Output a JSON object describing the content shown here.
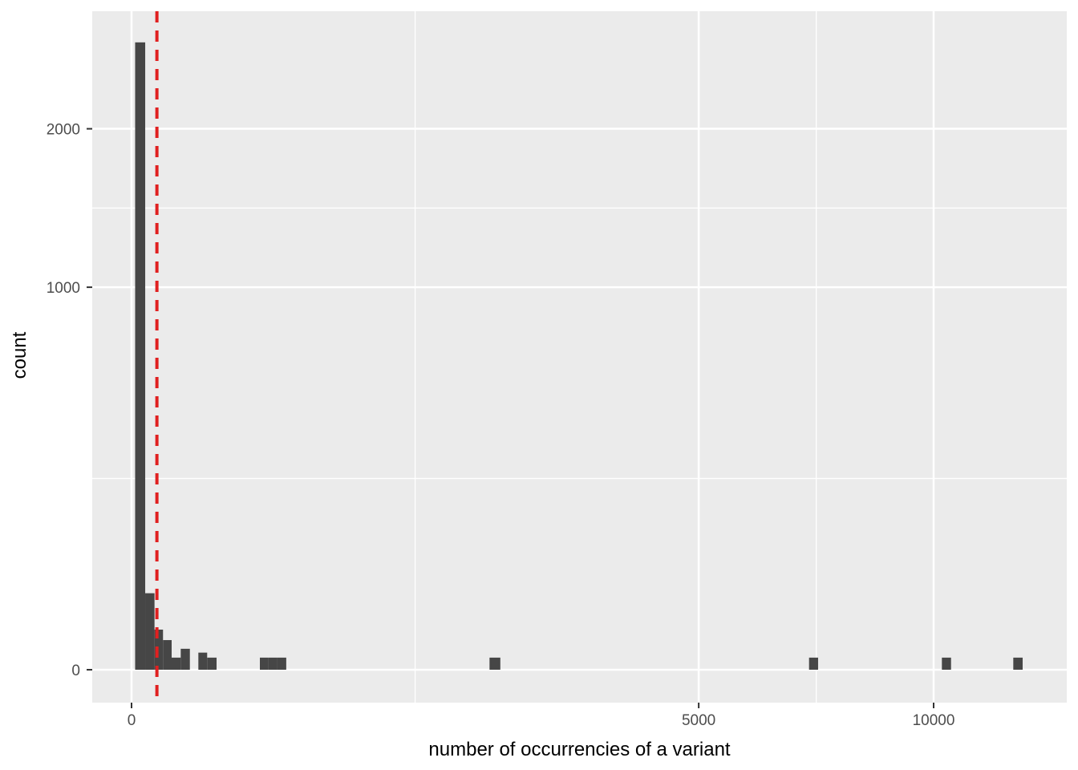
{
  "chart_data": {
    "type": "bar",
    "subtype": "histogram",
    "title": "",
    "xlabel": "number of occurrencies of a variant",
    "ylabel": "count",
    "x_scale": "sqrt",
    "y_scale": "sqrt",
    "grid": "on",
    "legend": "none",
    "x_ticks": [
      {
        "value": 0,
        "label": "0"
      },
      {
        "value": 5000,
        "label": "5000"
      },
      {
        "value": 10000,
        "label": "10000"
      }
    ],
    "x_minor_breaks": [
      1250,
      7288
    ],
    "y_ticks": [
      {
        "value": 0,
        "label": "0"
      },
      {
        "value": 1000,
        "label": "1000"
      },
      {
        "value": 2000,
        "label": "2000"
      }
    ],
    "y_minor_breaks": [
      250,
      1457
    ],
    "x_range_sqrt": [
      -4.9,
      116.6
    ],
    "y_range_sqrt": [
      -2.72,
      54.44
    ],
    "bins": [
      {
        "from": 0.2,
        "to": 2.9,
        "count": 2690
      },
      {
        "from": 2.9,
        "to": 8.2,
        "count": 40
      },
      {
        "from": 8.2,
        "to": 15.4,
        "count": 11
      },
      {
        "from": 15.4,
        "to": 25,
        "count": 6
      },
      {
        "from": 25,
        "to": 37.6,
        "count": 1
      },
      {
        "from": 37.6,
        "to": 52.9,
        "count": 3
      },
      {
        "from": 52.9,
        "to": 69.4,
        "count": 0
      },
      {
        "from": 69.4,
        "to": 88.9,
        "count": 2
      },
      {
        "from": 88.9,
        "to": 112.4,
        "count": 1
      },
      {
        "from": 256,
        "to": 292,
        "count": 1
      },
      {
        "from": 292,
        "to": 331,
        "count": 1
      },
      {
        "from": 331,
        "to": 372,
        "count": 1
      },
      {
        "from": 1992,
        "to": 2114,
        "count": 1
      },
      {
        "from": 7135,
        "to": 7327,
        "count": 1
      },
      {
        "from": 10207,
        "to": 10439,
        "count": 1
      },
      {
        "from": 12085,
        "to": 12343,
        "count": 1
      }
    ],
    "vline": {
      "x": 10,
      "style": "dashed",
      "color": "#E02020"
    },
    "colors": {
      "bar_fill": "#464646",
      "panel_background": "#EBEBEB",
      "grid": "#FFFFFF",
      "tick_label": "#4D4D4D",
      "tick_mark": "#333333",
      "axis_title": "#000000",
      "figure_background": "#FFFFFF"
    }
  }
}
